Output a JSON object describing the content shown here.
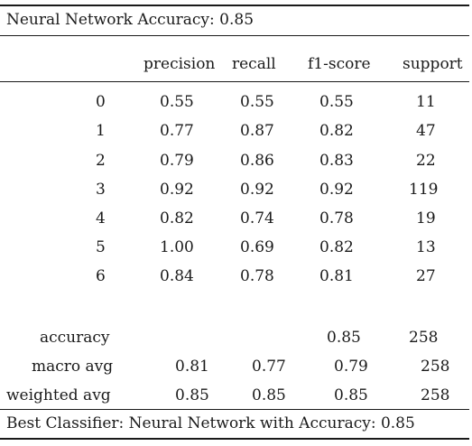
{
  "title": "Neural Network Accuracy: 0.85",
  "columns": [
    "precision",
    "recall",
    "f1-score",
    "support"
  ],
  "rows": [
    {
      "label": "0",
      "precision": "0.55",
      "recall": "0.55",
      "f1": "0.55",
      "support": "11"
    },
    {
      "label": "1",
      "precision": "0.77",
      "recall": "0.87",
      "f1": "0.82",
      "support": "47"
    },
    {
      "label": "2",
      "precision": "0.79",
      "recall": "0.86",
      "f1": "0.83",
      "support": "22"
    },
    {
      "label": "3",
      "precision": "0.92",
      "recall": "0.92",
      "f1": "0.92",
      "support": "119"
    },
    {
      "label": "4",
      "precision": "0.82",
      "recall": "0.74",
      "f1": "0.78",
      "support": "19"
    },
    {
      "label": "5",
      "precision": "1.00",
      "recall": "0.69",
      "f1": "0.82",
      "support": "13"
    },
    {
      "label": "6",
      "precision": "0.84",
      "recall": "0.78",
      "f1": "0.81",
      "support": "27"
    }
  ],
  "summary": {
    "accuracy": {
      "label": "accuracy",
      "f1": "0.85",
      "support": "258"
    },
    "macro": {
      "label": "macro avg",
      "precision": "0.81",
      "recall": "0.77",
      "f1": "0.79",
      "support": "258"
    },
    "weighted": {
      "label": "weighted avg",
      "precision": "0.85",
      "recall": "0.85",
      "f1": "0.85",
      "support": "258"
    }
  },
  "footer": "Best Classifier: Neural Network with Accuracy: 0.85"
}
